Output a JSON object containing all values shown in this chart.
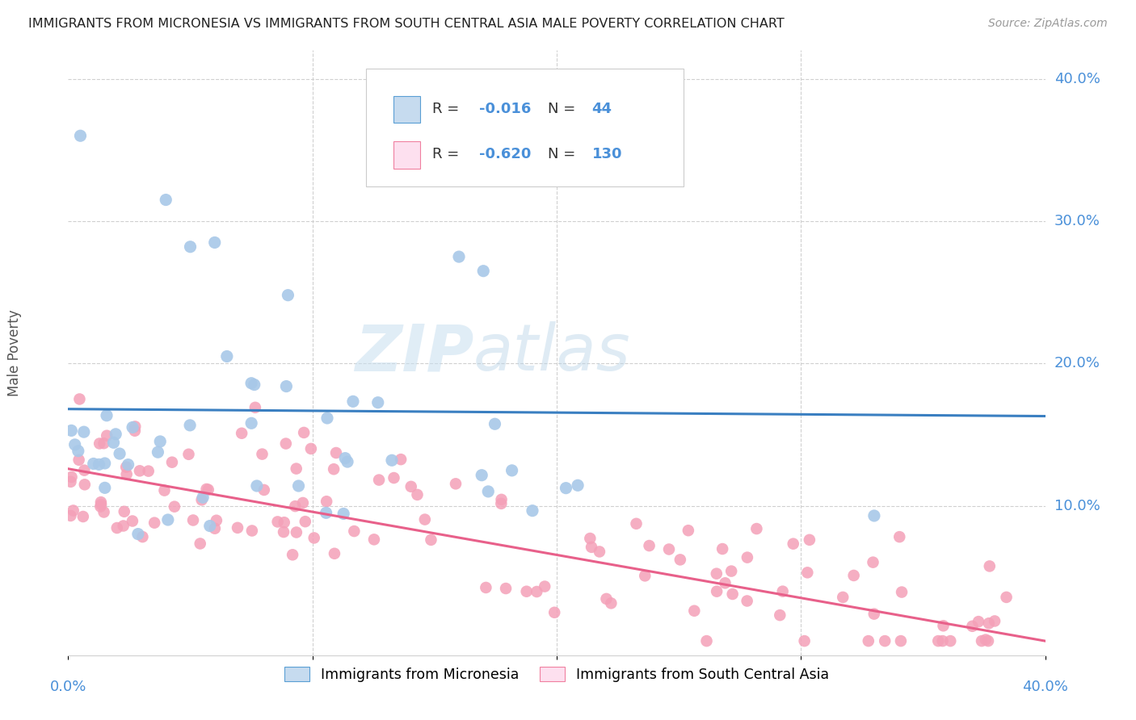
{
  "title": "IMMIGRANTS FROM MICRONESIA VS IMMIGRANTS FROM SOUTH CENTRAL ASIA MALE POVERTY CORRELATION CHART",
  "source": "Source: ZipAtlas.com",
  "ylabel": "Male Poverty",
  "xlim": [
    0.0,
    0.4
  ],
  "ylim": [
    -0.005,
    0.42
  ],
  "legend1_label": "Immigrants from Micronesia",
  "legend2_label": "Immigrants from South Central Asia",
  "R1": -0.016,
  "N1": 44,
  "R2": -0.62,
  "N2": 130,
  "color_blue_dot": "#a8c8e8",
  "color_pink_dot": "#f4a0b8",
  "color_blue_fill": "#c6dbef",
  "color_pink_fill": "#fde0ef",
  "color_blue_line": "#3a7fc1",
  "color_pink_line": "#e8608a",
  "color_blue_border": "#5a9fd4",
  "color_pink_border": "#f080a0",
  "color_axis_text": "#4a90d9",
  "color_grid": "#d0d0d0",
  "watermark_color": "#daeef8",
  "ytick_values": [
    0.1,
    0.2,
    0.3,
    0.4
  ],
  "blue_line_y0": 0.168,
  "blue_line_y1": 0.163,
  "pink_line_y0": 0.126,
  "pink_line_y1": 0.005
}
